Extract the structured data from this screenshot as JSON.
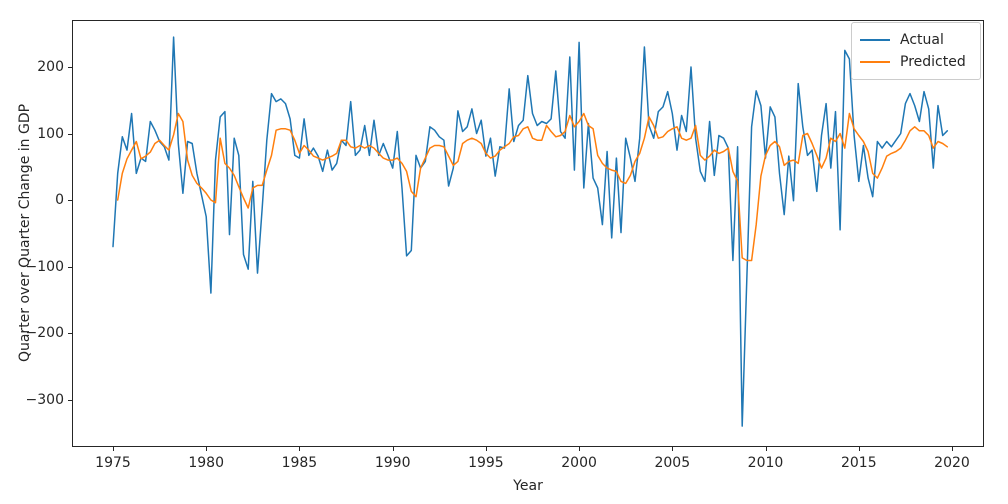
{
  "chart_data": {
    "type": "line",
    "title": "",
    "xlabel": "Year",
    "ylabel": "Quarter over Quarter Change in GDP",
    "grid": false,
    "legend_position": "upper right",
    "x_ticks": [
      1975,
      1980,
      1985,
      1990,
      1995,
      2000,
      2005,
      2010,
      2015,
      2020
    ],
    "y_ticks": [
      200,
      100,
      0,
      -100,
      -200,
      -300
    ],
    "x_range_shown": [
      1972.8,
      2021.7
    ],
    "y_range_shown": [
      -371,
      271
    ],
    "series": [
      {
        "name": "Actual",
        "color": "#1f77b4",
        "x_start": 1975.0,
        "x_step": 0.25,
        "values": [
          -70,
          40,
          95,
          75,
          130,
          40,
          63,
          58,
          118,
          105,
          88,
          80,
          60,
          245,
          85,
          10,
          88,
          85,
          40,
          7,
          -25,
          -140,
          60,
          125,
          133,
          -52,
          93,
          67,
          -82,
          -104,
          28,
          -110,
          -12,
          90,
          160,
          148,
          152,
          145,
          122,
          67,
          63,
          122,
          67,
          78,
          66,
          43,
          75,
          45,
          55,
          90,
          82,
          148,
          67,
          75,
          112,
          67,
          120,
          67,
          85,
          67,
          48,
          103,
          18,
          -84,
          -76,
          67,
          48,
          58,
          110,
          105,
          95,
          90,
          21,
          48,
          134,
          103,
          110,
          137,
          100,
          120,
          66,
          93,
          36,
          80,
          78,
          167,
          88,
          112,
          120,
          187,
          130,
          112,
          118,
          115,
          122,
          194,
          103,
          93,
          215,
          45,
          237,
          18,
          115,
          33,
          18,
          -37,
          73,
          -57,
          63,
          -49,
          93,
          63,
          28,
          93,
          230,
          112,
          93,
          133,
          140,
          163,
          130,
          75,
          127,
          103,
          200,
          93,
          43,
          28,
          118,
          37,
          97,
          93,
          78,
          -91,
          80,
          -340,
          -115,
          110,
          164,
          142,
          63,
          140,
          125,
          40,
          -22,
          66,
          -1,
          175,
          110,
          67,
          75,
          13,
          97,
          145,
          48,
          133,
          -45,
          225,
          212,
          97,
          28,
          82,
          33,
          5,
          88,
          78,
          88,
          80,
          90,
          100,
          145,
          160,
          142,
          118,
          163,
          137,
          48,
          142,
          97,
          104
        ]
      },
      {
        "name": "Predicted",
        "color": "#ff7f0e",
        "x_start": 1975.25,
        "x_step": 0.25,
        "values": [
          0,
          40,
          62,
          75,
          88,
          62,
          66,
          72,
          85,
          90,
          82,
          75,
          98,
          130,
          118,
          60,
          37,
          25,
          18,
          10,
          0,
          -4,
          93,
          55,
          48,
          37,
          20,
          3,
          -12,
          18,
          22,
          22,
          45,
          67,
          105,
          107,
          107,
          105,
          90,
          70,
          82,
          75,
          66,
          63,
          60,
          63,
          66,
          70,
          90,
          90,
          80,
          78,
          82,
          78,
          82,
          78,
          70,
          63,
          60,
          60,
          63,
          55,
          43,
          13,
          5,
          48,
          63,
          78,
          82,
          82,
          80,
          66,
          52,
          58,
          85,
          90,
          93,
          90,
          85,
          70,
          63,
          66,
          75,
          80,
          85,
          95,
          97,
          107,
          110,
          93,
          90,
          90,
          112,
          103,
          95,
          97,
          103,
          127,
          110,
          118,
          130,
          112,
          107,
          67,
          55,
          48,
          45,
          43,
          28,
          25,
          37,
          58,
          70,
          93,
          125,
          112,
          93,
          95,
          103,
          107,
          110,
          93,
          90,
          93,
          112,
          67,
          60,
          66,
          75,
          70,
          73,
          78,
          43,
          28,
          -87,
          -91,
          -91,
          -37,
          36,
          67,
          82,
          88,
          80,
          52,
          58,
          60,
          55,
          97,
          100,
          85,
          67,
          48,
          63,
          93,
          88,
          100,
          78,
          130,
          107,
          97,
          88,
          73,
          40,
          33,
          48,
          66,
          70,
          73,
          78,
          90,
          104,
          110,
          104,
          104,
          97,
          78,
          88,
          85,
          80
        ]
      }
    ]
  },
  "legend": {
    "items": [
      {
        "label": "Actual"
      },
      {
        "label": "Predicted"
      }
    ]
  }
}
